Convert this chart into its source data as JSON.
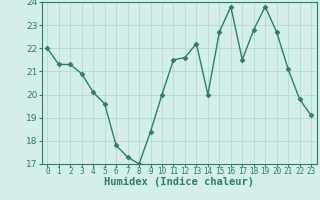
{
  "x": [
    0,
    1,
    2,
    3,
    4,
    5,
    6,
    7,
    8,
    9,
    10,
    11,
    12,
    13,
    14,
    15,
    16,
    17,
    18,
    19,
    20,
    21,
    22,
    23
  ],
  "y": [
    22.0,
    21.3,
    21.3,
    20.9,
    20.1,
    19.6,
    17.8,
    17.3,
    17.0,
    18.4,
    20.0,
    21.5,
    21.6,
    22.2,
    20.0,
    22.7,
    23.8,
    21.5,
    22.8,
    23.8,
    22.7,
    21.1,
    19.8,
    19.1
  ],
  "line_color": "#2d7d6e",
  "marker": "D",
  "marker_size": 2.5,
  "bg_color": "#d4eeea",
  "grid_color": "#b8d8d2",
  "xlabel": "Humidex (Indice chaleur)",
  "xlabel_color": "#2d7d6e",
  "xlabel_fontsize": 7.5,
  "ylim": [
    17,
    24
  ],
  "yticks": [
    17,
    18,
    19,
    20,
    21,
    22,
    23,
    24
  ],
  "xtick_labels": [
    "0",
    "1",
    "2",
    "3",
    "4",
    "5",
    "6",
    "7",
    "8",
    "9",
    "10",
    "11",
    "12",
    "13",
    "14",
    "15",
    "16",
    "17",
    "18",
    "19",
    "20",
    "21",
    "22",
    "23"
  ],
  "tick_color": "#2d7d6e",
  "ytick_fontsize": 6.5,
  "xtick_fontsize": 5.5,
  "line_width": 1.0
}
